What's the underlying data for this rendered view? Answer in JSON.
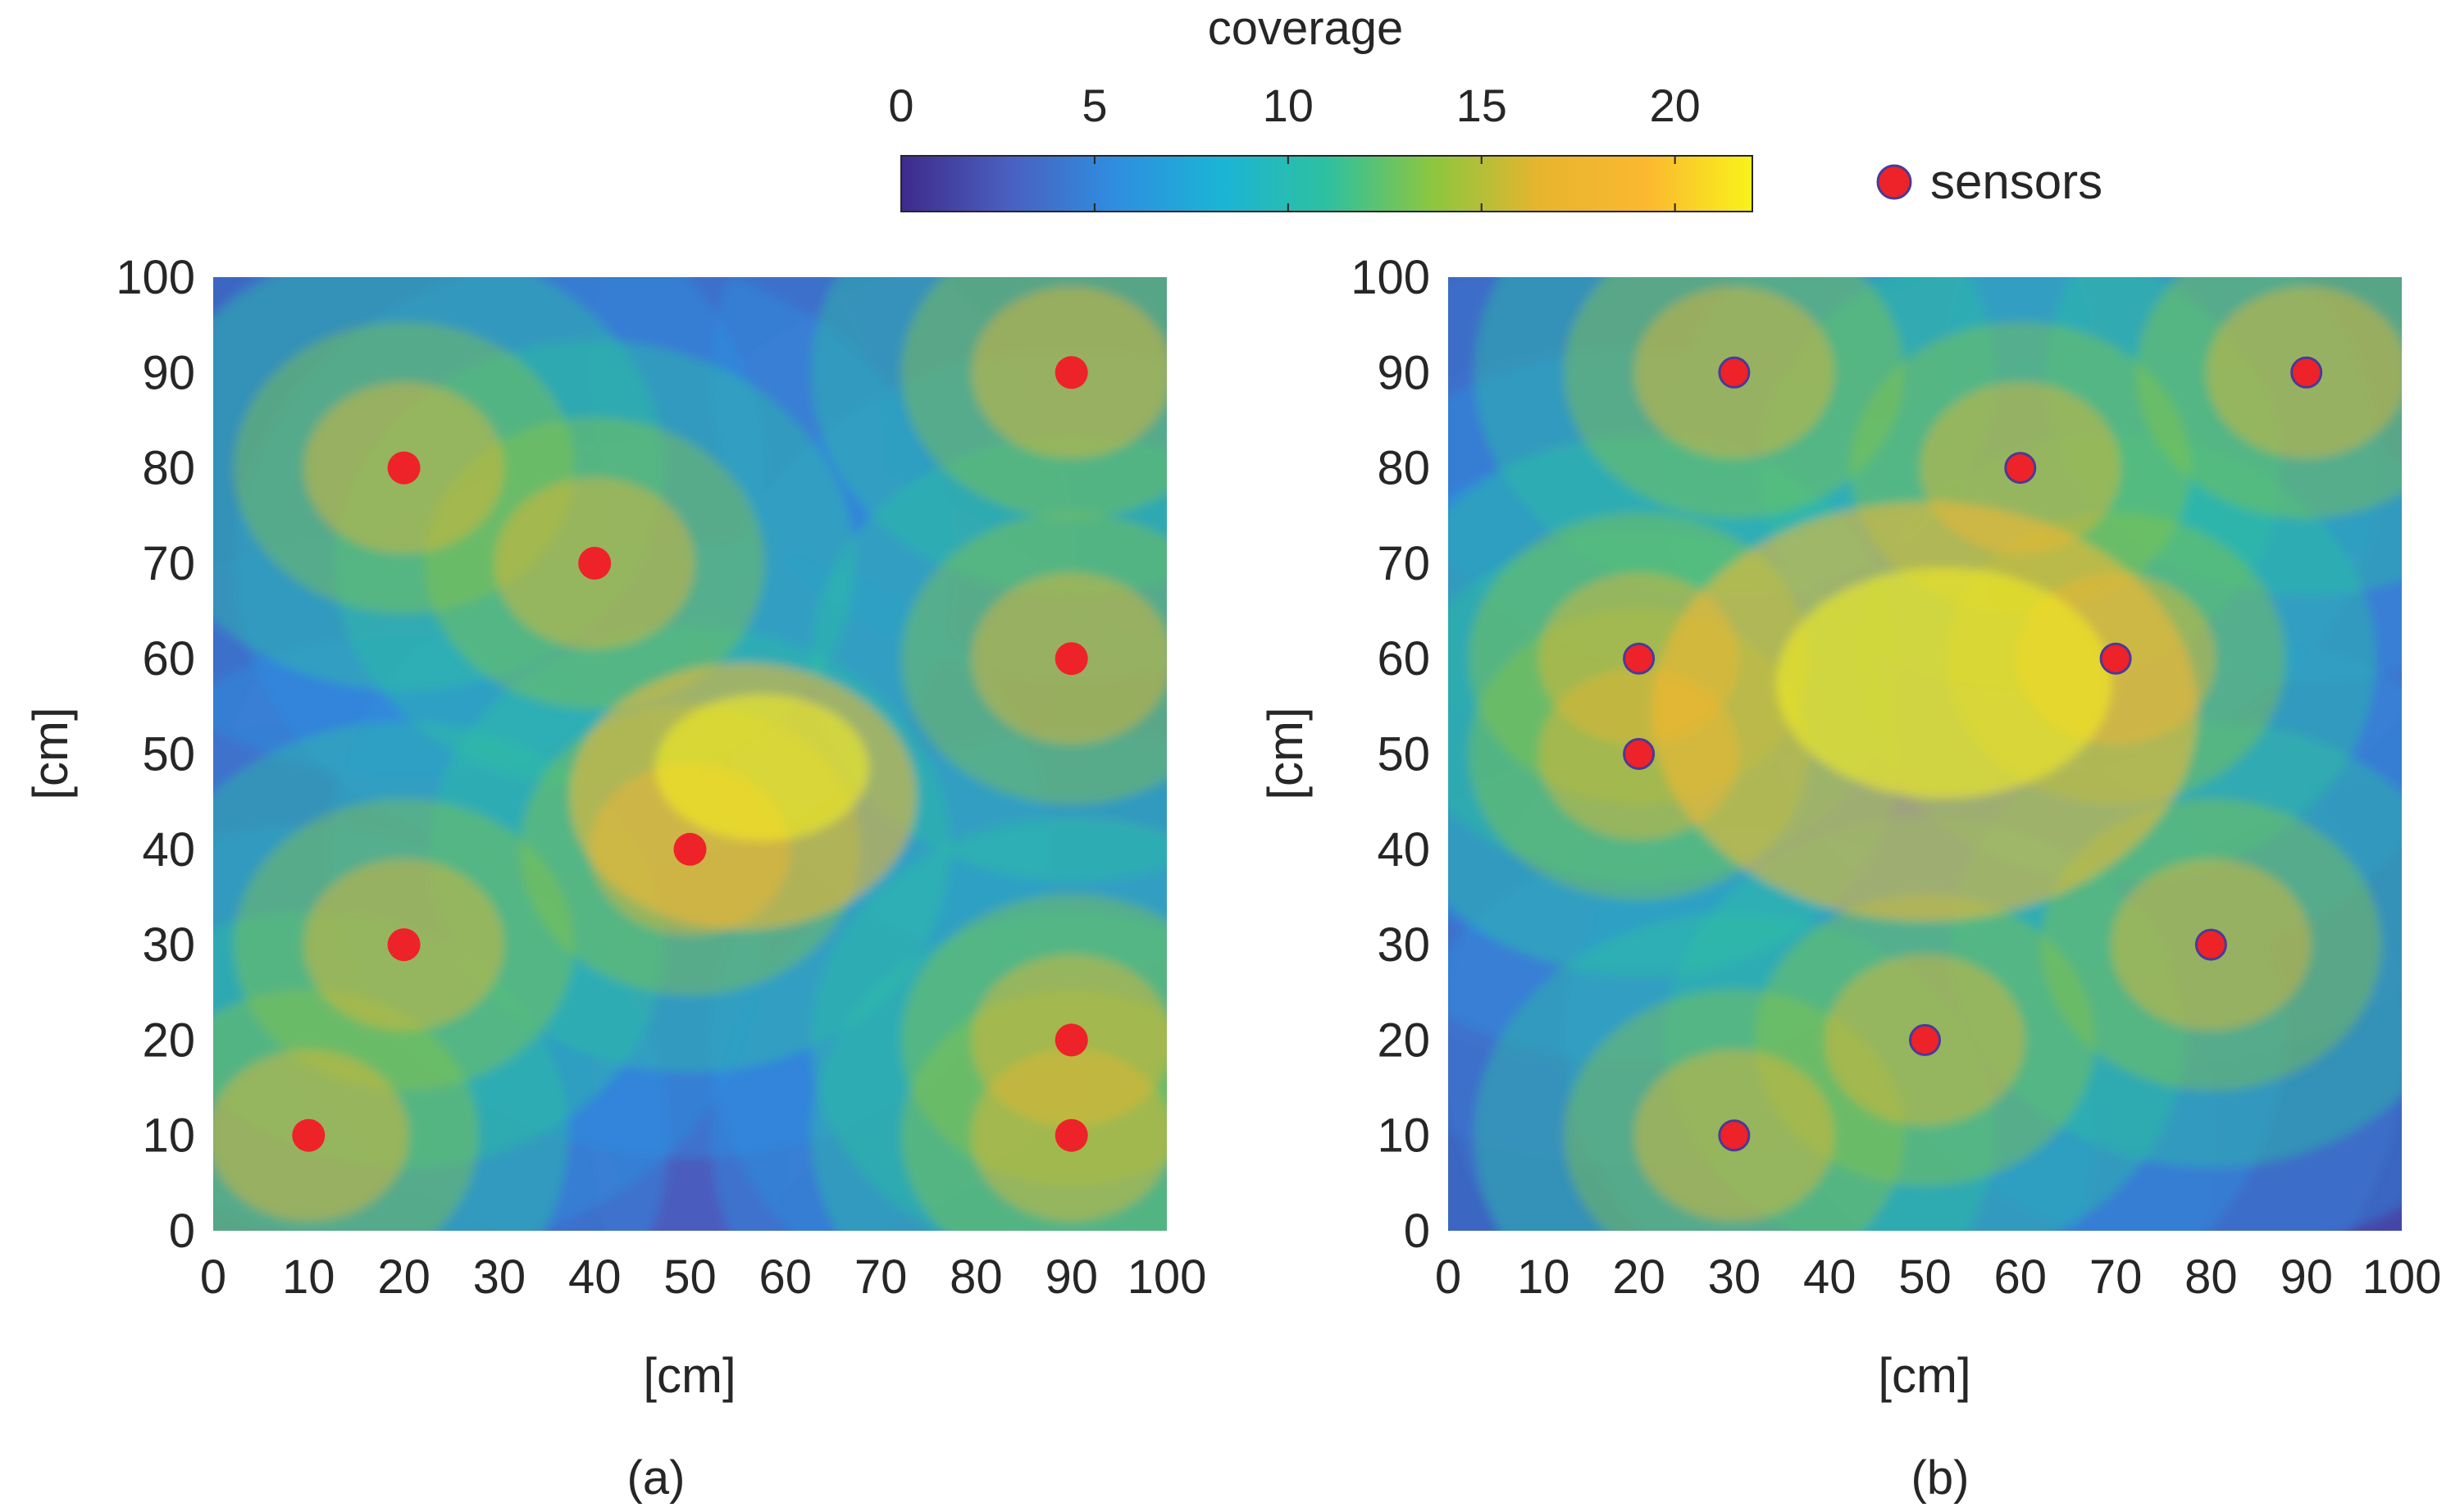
{
  "colorbar": {
    "title": "coverage",
    "ticks": [
      0,
      5,
      10,
      15,
      20
    ],
    "range": [
      0,
      22
    ],
    "colormap": [
      "#3e2a8c",
      "#4a5fbf",
      "#2f8de0",
      "#1bb4d6",
      "#2ec0a0",
      "#8dc63f",
      "#e6b52e",
      "#fbb830",
      "#f9f21c"
    ]
  },
  "legend": {
    "label": "sensors",
    "marker_color": "#ee2229",
    "marker_edge": "#4b3a96"
  },
  "chart_data": [
    {
      "type": "heatmap",
      "panel_label": "(a)",
      "xlabel": "[cm]",
      "ylabel": "[cm]",
      "xlim": [
        0,
        100
      ],
      "ylim": [
        0,
        100
      ],
      "xticks": [
        0,
        10,
        20,
        30,
        40,
        50,
        60,
        70,
        80,
        90,
        100
      ],
      "yticks": [
        0,
        10,
        20,
        30,
        40,
        50,
        60,
        70,
        80,
        90,
        100
      ],
      "sensors": [
        {
          "x": 10,
          "y": 10
        },
        {
          "x": 20,
          "y": 30
        },
        {
          "x": 20,
          "y": 80
        },
        {
          "x": 40,
          "y": 70
        },
        {
          "x": 50,
          "y": 40
        },
        {
          "x": 90,
          "y": 90
        },
        {
          "x": 90,
          "y": 60
        },
        {
          "x": 90,
          "y": 20
        },
        {
          "x": 90,
          "y": 10
        }
      ]
    },
    {
      "type": "heatmap",
      "panel_label": "(b)",
      "xlabel": "[cm]",
      "ylabel": "[cm]",
      "xlim": [
        0,
        100
      ],
      "ylim": [
        0,
        100
      ],
      "xticks": [
        0,
        10,
        20,
        30,
        40,
        50,
        60,
        70,
        80,
        90,
        100
      ],
      "yticks": [
        0,
        10,
        20,
        30,
        40,
        50,
        60,
        70,
        80,
        90,
        100
      ],
      "sensors": [
        {
          "x": 30,
          "y": 90
        },
        {
          "x": 90,
          "y": 90
        },
        {
          "x": 60,
          "y": 80
        },
        {
          "x": 20,
          "y": 60
        },
        {
          "x": 70,
          "y": 60
        },
        {
          "x": 20,
          "y": 50
        },
        {
          "x": 80,
          "y": 30
        },
        {
          "x": 50,
          "y": 20
        },
        {
          "x": 30,
          "y": 10
        }
      ]
    }
  ]
}
